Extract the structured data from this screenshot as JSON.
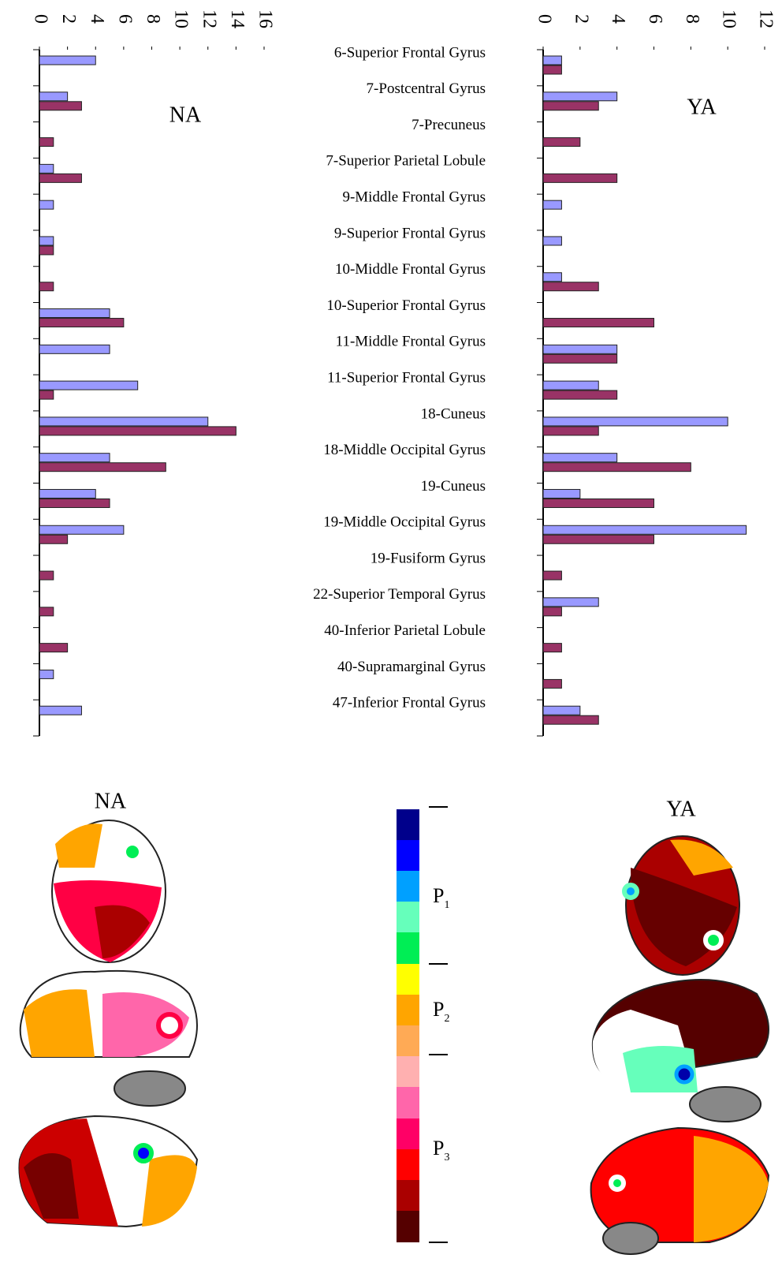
{
  "chart_data": [
    {
      "type": "bar",
      "orientation": "horizontal",
      "title": "NA",
      "series": [
        {
          "color": "#9999ff",
          "values": [
            4,
            2,
            0,
            1,
            1,
            1,
            0,
            5,
            5,
            7,
            12,
            5,
            4,
            6,
            0,
            0,
            0,
            1,
            3
          ]
        },
        {
          "color": "#993366",
          "values": [
            0,
            3,
            1,
            3,
            0,
            1,
            1,
            6,
            0,
            1,
            14,
            9,
            5,
            2,
            1,
            1,
            2,
            0,
            0
          ]
        }
      ],
      "xlim": [
        0,
        16
      ],
      "xticks": [
        0,
        2,
        4,
        6,
        8,
        10,
        12,
        14,
        16
      ]
    },
    {
      "type": "bar",
      "orientation": "horizontal",
      "title": "YA",
      "categories": [
        "6-Superior Frontal Gyrus",
        "7-Postcentral Gyrus",
        "7-Precuneus",
        "7-Superior Parietal Lobule",
        "9-Middle Frontal Gyrus",
        "9-Superior Frontal Gyrus",
        "10-Middle Frontal Gyrus",
        "10-Superior Frontal Gyrus",
        "11-Middle Frontal Gyrus",
        "11-Superior Frontal Gyrus",
        "18-Cuneus",
        "18-Middle Occipital Gyrus",
        "19-Cuneus",
        "19-Middle Occipital Gyrus",
        "19-Fusiform Gyrus",
        "22-Superior Temporal Gyrus",
        "40-Inferior Parietal Lobule",
        "40-Supramarginal Gyrus",
        "47-Inferior Frontal Gyrus"
      ],
      "series": [
        {
          "color": "#9999ff",
          "values": [
            1,
            4,
            0,
            0,
            1,
            1,
            1,
            0,
            4,
            3,
            10,
            4,
            2,
            11,
            0,
            3,
            0,
            0,
            2
          ]
        },
        {
          "color": "#993366",
          "values": [
            1,
            3,
            2,
            4,
            0,
            0,
            3,
            6,
            4,
            4,
            3,
            8,
            6,
            6,
            1,
            1,
            1,
            1,
            3
          ]
        }
      ],
      "xlim": [
        0,
        12
      ],
      "xticks": [
        0,
        2,
        4,
        6,
        8,
        10,
        12
      ]
    }
  ],
  "brain_maps": [
    {
      "title": "NA"
    },
    {
      "title": "YA"
    }
  ],
  "colorbar": {
    "labels": [
      {
        "main": "P",
        "sub": "1"
      },
      {
        "main": "P",
        "sub": "2"
      },
      {
        "main": "P",
        "sub": "3"
      }
    ]
  }
}
